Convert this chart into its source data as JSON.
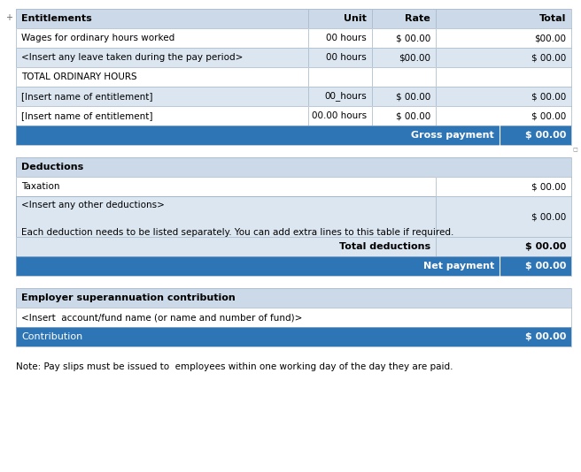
{
  "bg_color": "#ffffff",
  "header_bg": "#ccd9e8",
  "blue_row_bg": "#2e75b6",
  "light_blue_bg": "#dce6f1",
  "white_bg": "#ffffff",
  "total_row_bg": "#dce6f1",
  "border_color": "#a0b4c8",
  "header_text_color": "#000000",
  "blue_row_text_color": "#ffffff",
  "normal_text_color": "#000000",
  "note_text": "Note: Pay slips must be issued to  employees within one working day of the day they are paid.",
  "section1": {
    "header": [
      "Entitlements",
      "Unit",
      "Rate",
      "Total"
    ],
    "rows": [
      {
        "col1": "Wages for ordinary hours worked",
        "col2": "00 hours",
        "col3": "$ 00.00",
        "col4": "$00.00",
        "bg": "#ffffff"
      },
      {
        "col1": "<Insert any leave taken during the pay period>",
        "col2": "00 hours",
        "col3": "$00.00",
        "col4": "$ 00.00",
        "bg": "#dce6f1"
      },
      {
        "col1": "TOTAL ORDINARY HOURS",
        "col2": "",
        "col3": "",
        "col4": "",
        "bg": "#ffffff"
      },
      {
        "col1": "[Insert name of entitlement]",
        "col2": "00_hours",
        "col3": "$ 00.00",
        "col4": "$ 00.00",
        "bg": "#dce6f1"
      },
      {
        "col1": "[Insert name of entitlement]",
        "col2": "00.00 hours",
        "col3": "$ 00.00",
        "col4": "$ 00.00",
        "bg": "#ffffff"
      }
    ],
    "footer_label": "Gross payment",
    "footer_value": "$ 00.00"
  },
  "section2": {
    "header": "Deductions",
    "rows": [
      {
        "col1": "Taxation",
        "col2": "$ 00.00",
        "bg": "#ffffff"
      },
      {
        "col1": "<Insert any other deductions>\n\nEach deduction needs to be listed separately. You can add extra lines to this table if required.",
        "col2": "$ 00.00",
        "bg": "#dce6f1"
      },
      {
        "col1": "Total deductions",
        "col2": "$ 00.00",
        "bg": "#dce6f1",
        "bold": true
      }
    ],
    "footer_label": "Net payment",
    "footer_value": "$ 00.00"
  },
  "section3": {
    "header": "Employer superannuation contribution",
    "rows": [
      {
        "col1": "<Insert  account/fund name (or name and number of fund)>",
        "col2": "",
        "bg": "#ffffff"
      }
    ],
    "footer_label": "Contribution",
    "footer_value": "$ 00.00"
  }
}
